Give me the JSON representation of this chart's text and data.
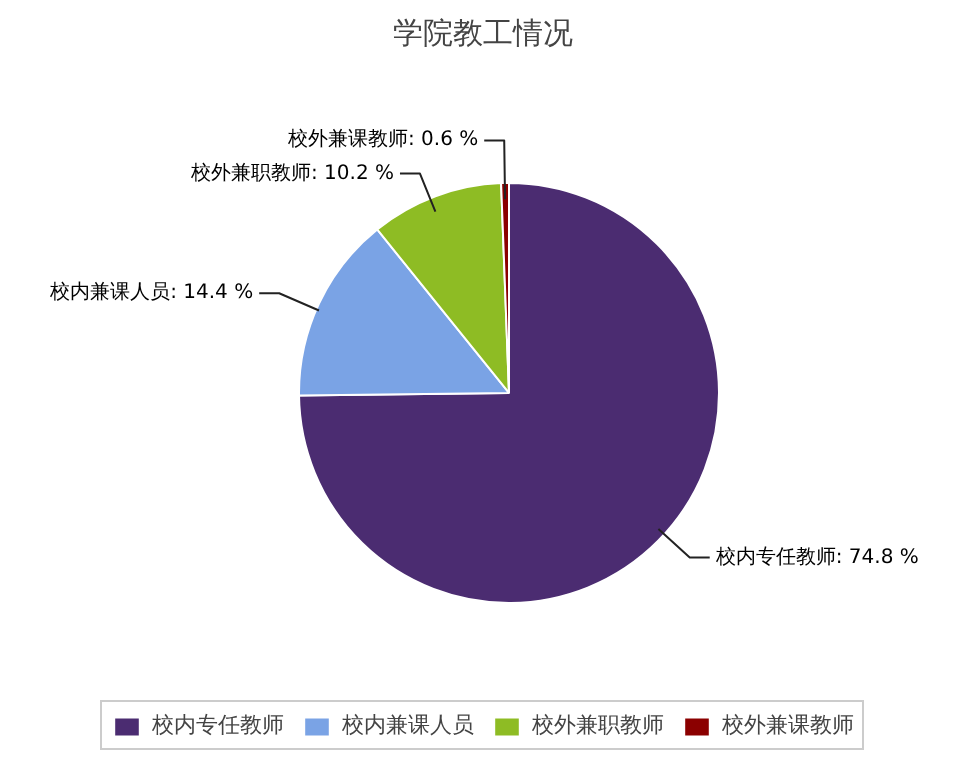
{
  "chart_data": {
    "type": "pie",
    "title": "学院教工情况",
    "categories": [
      "校内专任教师",
      "校内兼课人员",
      "校外兼职教师",
      "校外兼课教师"
    ],
    "values": [
      74.8,
      14.4,
      10.2,
      0.6
    ],
    "colors": [
      "#4b2c71",
      "#7aa3e5",
      "#8ebc24",
      "#8b0000"
    ],
    "value_labels": [
      "校内专任教师: 74.8 %",
      "校内兼课人员: 14.4 %",
      "校外兼职教师: 10.2 %",
      "校外兼课教师: 0.6 %"
    ],
    "data_labels": true,
    "legend": "bottom"
  }
}
